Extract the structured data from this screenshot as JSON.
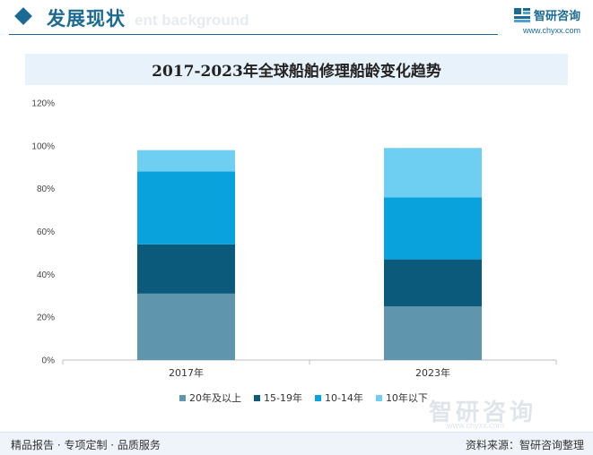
{
  "header": {
    "title": "发展现状",
    "bg_text": "ent background"
  },
  "brand": {
    "name": "智研咨询",
    "url": "www.chyxx.com",
    "logo_icon": "chyxx-logo-icon"
  },
  "chart_data": {
    "type": "bar",
    "stacked": true,
    "title": "2017-2023年全球船舶修理船龄变化趋势",
    "categories": [
      "2017年",
      "2023年"
    ],
    "y_ticks": [
      "0%",
      "20%",
      "40%",
      "60%",
      "80%",
      "100%",
      "120%"
    ],
    "ylim": [
      0,
      120
    ],
    "legend_position": "bottom",
    "series": [
      {
        "name": "20年及以上",
        "color": "#5f95ad",
        "values": [
          31,
          25
        ]
      },
      {
        "name": "15-19年",
        "color": "#0b5a7c",
        "values": [
          23,
          22
        ]
      },
      {
        "name": "10-14年",
        "color": "#0aa2dc",
        "values": [
          34,
          29
        ]
      },
      {
        "name": "10年以下",
        "color": "#6fcff3",
        "values": [
          10,
          23
        ]
      }
    ]
  },
  "watermark": {
    "name": "智研咨询",
    "url": "www.chyxx.com"
  },
  "footer": {
    "left": "精品报告 · 专项定制 · 品质服务",
    "right": "资料来源：智研咨询整理"
  }
}
